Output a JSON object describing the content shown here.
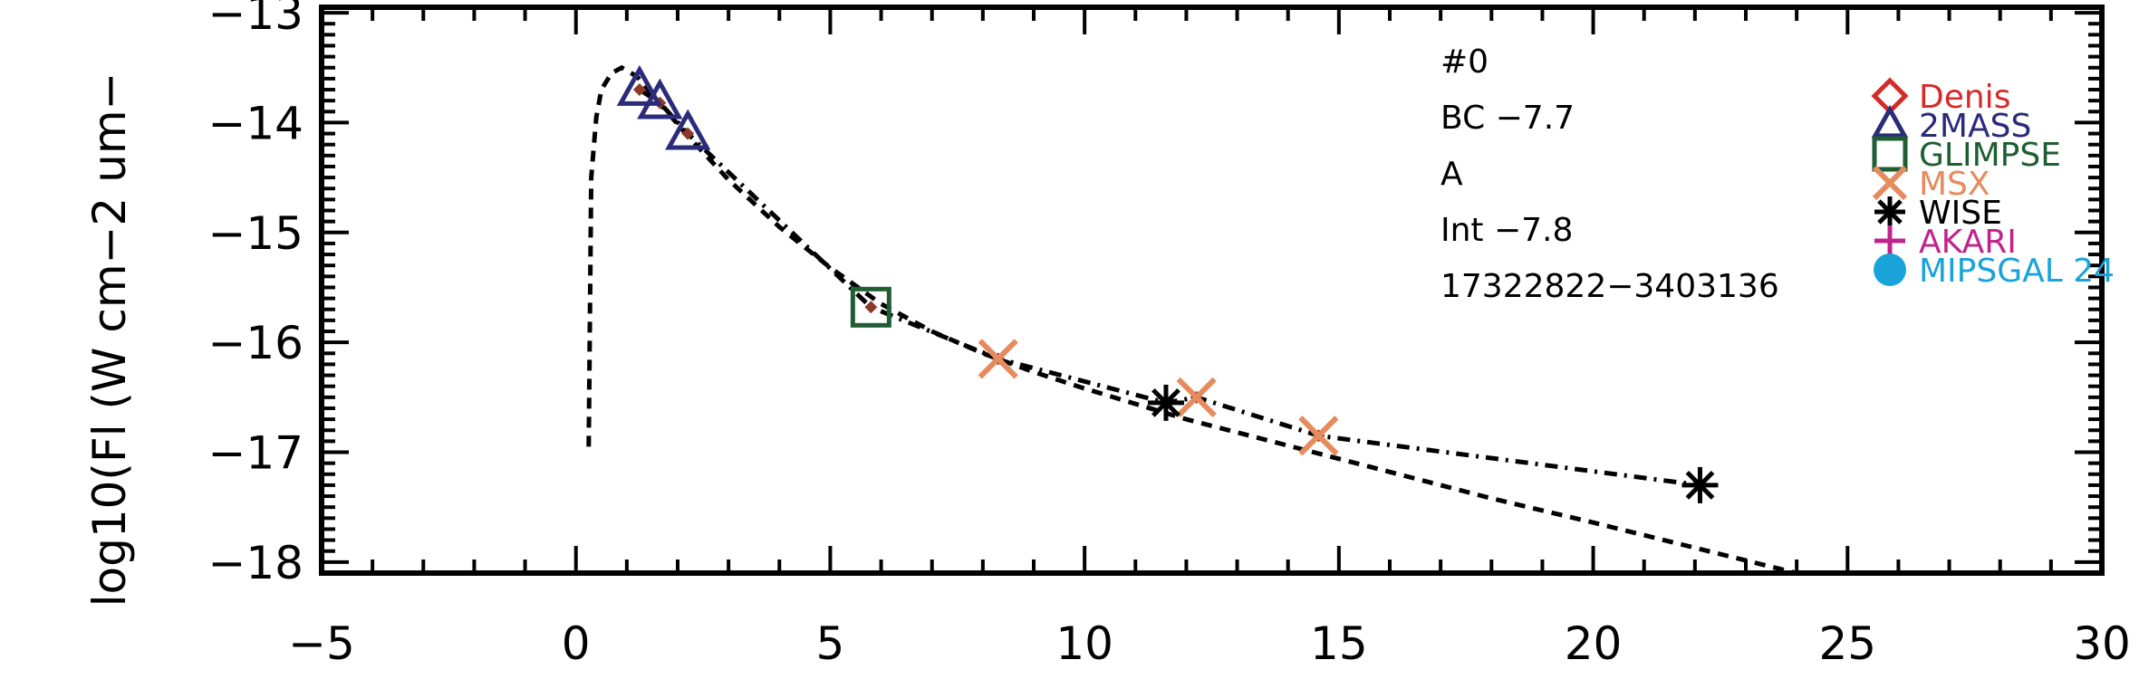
{
  "chart_data": {
    "type": "scatter",
    "ylabel": "log10(Fl (W cm−2 um−",
    "xlim": [
      -5,
      30
    ],
    "ylim": [
      -18.1,
      -12.95
    ],
    "xticks": [
      -5,
      0,
      5,
      10,
      15,
      20,
      25,
      30
    ],
    "xtick_labels": [
      "−5",
      "0",
      "5",
      "10",
      "15",
      "20",
      "25",
      "30"
    ],
    "yticks": [
      -13,
      -14,
      -15,
      -16,
      -17,
      -18
    ],
    "ytick_labels": [
      "−13",
      "−14",
      "−15",
      "−16",
      "−17",
      "−18"
    ],
    "annotations": [
      "#0",
      "BC −7.7",
      "A",
      "Int −7.8",
      "17322822−3403136"
    ],
    "legend_position": "top-right",
    "legend": [
      {
        "name": "Denis",
        "marker": "diamond",
        "color": "#d42a2a"
      },
      {
        "name": "2MASS",
        "marker": "triangle",
        "color": "#2b2b7a"
      },
      {
        "name": "GLIMPSE",
        "marker": "square",
        "color": "#1e5e32"
      },
      {
        "name": "MSX",
        "marker": "x",
        "color": "#e58b5e"
      },
      {
        "name": "WISE",
        "marker": "asterisk",
        "color": "#000000"
      },
      {
        "name": "AKARI",
        "marker": "plus",
        "color": "#c0248c"
      },
      {
        "name": "MIPSGAL 24",
        "marker": "circle",
        "color": "#1aa3d9"
      }
    ],
    "lines": [
      {
        "style": "dashed",
        "x": [
          0.25,
          0.3,
          0.4,
          0.5,
          0.7,
          0.9,
          1.2,
          1.6,
          2.2,
          3.0,
          4.0,
          5.0,
          6.0,
          7.0,
          8.0,
          9.0,
          10.0,
          11.0,
          12.0,
          14.0,
          16.0,
          18.0,
          20.0,
          22.0,
          24.0
        ],
        "y": [
          -16.95,
          -14.5,
          -13.95,
          -13.7,
          -13.55,
          -13.5,
          -13.58,
          -13.8,
          -14.12,
          -14.52,
          -14.95,
          -15.32,
          -15.65,
          -15.9,
          -16.1,
          -16.27,
          -16.42,
          -16.56,
          -16.7,
          -16.94,
          -17.18,
          -17.42,
          -17.64,
          -17.87,
          -18.1
        ]
      },
      {
        "style": "dash-dot",
        "x": [
          1.25,
          1.65,
          2.2,
          5.8,
          8.3,
          11.6,
          12.2,
          14.6,
          22.1
        ],
        "y": [
          -13.7,
          -13.82,
          -14.1,
          -15.68,
          -16.15,
          -16.55,
          -16.5,
          -16.85,
          -17.3
        ]
      }
    ],
    "series": [
      {
        "name": "2MASS",
        "marker": "triangle",
        "color": "#2b2b7a",
        "x": [
          1.25,
          1.65,
          2.2
        ],
        "y": [
          -13.7,
          -13.82,
          -14.1
        ]
      },
      {
        "name": "GLIMPSE",
        "marker": "square",
        "color": "#1e5e32",
        "x": [
          5.8
        ],
        "y": [
          -15.68
        ]
      },
      {
        "name": "MSX",
        "marker": "x",
        "color": "#e58b5e",
        "x": [
          8.3,
          12.2,
          14.6
        ],
        "y": [
          -16.15,
          -16.5,
          -16.85
        ]
      },
      {
        "name": "WISE",
        "marker": "asterisk",
        "color": "#000000",
        "x": [
          11.6,
          22.1
        ],
        "y": [
          -16.55,
          -17.3
        ]
      }
    ],
    "model_points": {
      "color": "#8b3a2a",
      "x": [
        1.25,
        1.65,
        2.2,
        5.8,
        8.3,
        11.6,
        12.2,
        14.6,
        22.1
      ],
      "y": [
        -13.7,
        -13.82,
        -14.1,
        -15.68,
        -16.15,
        -16.55,
        -16.5,
        -16.85,
        -17.3
      ]
    }
  }
}
